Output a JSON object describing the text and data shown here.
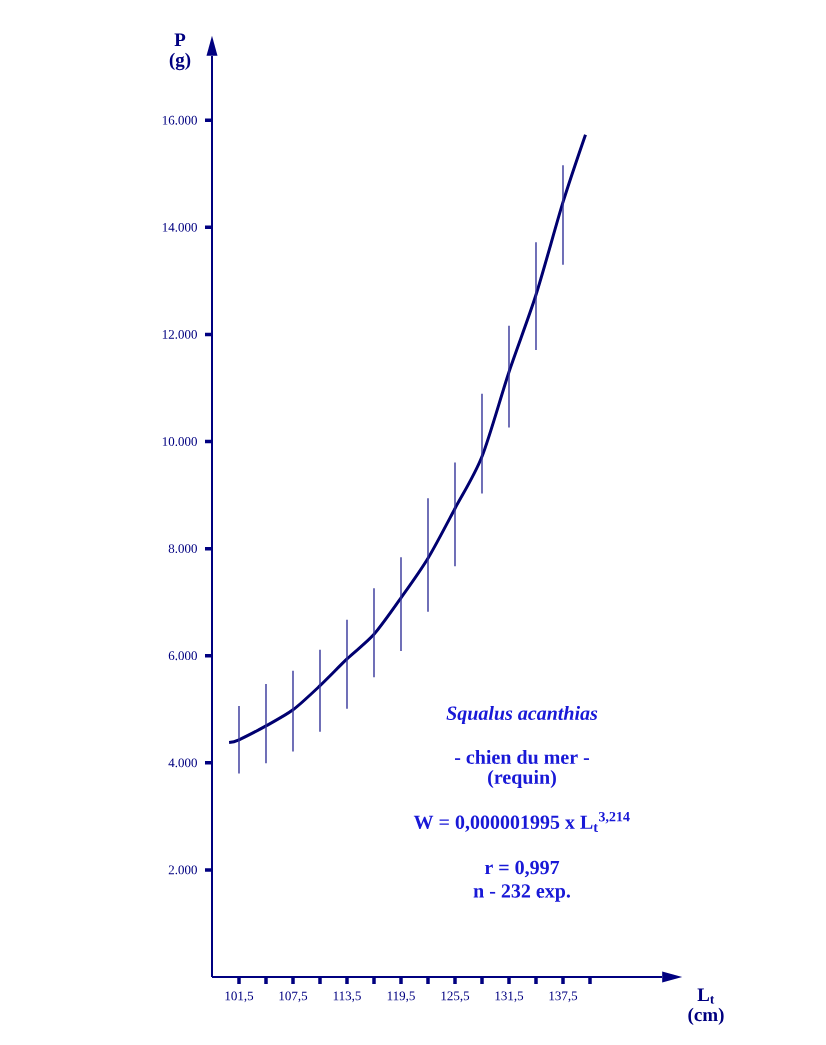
{
  "chart_data": {
    "type": "line",
    "xlabel": "L$_{t}$ (cm)",
    "ylabel": "P (g)",
    "xlim": [
      98.5,
      148.5
    ],
    "ylim": [
      0,
      17200
    ],
    "xticks": [
      {
        "value": 101.5,
        "label": "101,5"
      },
      {
        "value": 104.5,
        "label": null
      },
      {
        "value": 107.5,
        "label": "107,5"
      },
      {
        "value": 110.5,
        "label": null
      },
      {
        "value": 113.5,
        "label": "113,5"
      },
      {
        "value": 116.5,
        "label": null
      },
      {
        "value": 119.5,
        "label": "119,5"
      },
      {
        "value": 122.5,
        "label": null
      },
      {
        "value": 125.5,
        "label": "125,5"
      },
      {
        "value": 128.5,
        "label": null
      },
      {
        "value": 131.5,
        "label": "131,5"
      },
      {
        "value": 134.5,
        "label": null
      },
      {
        "value": 137.5,
        "label": "137,5"
      },
      {
        "value": 140.5,
        "label": null
      }
    ],
    "yticks": [
      {
        "value": 2000,
        "label": "2.000"
      },
      {
        "value": 4000,
        "label": "4.000"
      },
      {
        "value": 6000,
        "label": "6.000"
      },
      {
        "value": 8000,
        "label": "8.000"
      },
      {
        "value": 10000,
        "label": "10.000"
      },
      {
        "value": 12000,
        "label": "12.000"
      },
      {
        "value": 14000,
        "label": "14.000"
      },
      {
        "value": 16000,
        "label": "16.000"
      }
    ],
    "series": [
      {
        "color": "#000070",
        "x": [
          100.4,
          101.5,
          104.5,
          107.5,
          110.5,
          113.5,
          116.5,
          119.5,
          122.5,
          125.5,
          128.5,
          131.5,
          134.5,
          137.5,
          140.0
        ],
        "values": [
          4380,
          4430,
          4690,
          4990,
          5440,
          5940,
          6400,
          7080,
          7820,
          8750,
          9720,
          11300,
          12740,
          14470,
          15730
        ],
        "errors": [
          null,
          [
            3800,
            5060
          ],
          [
            3990,
            5470
          ],
          [
            4210,
            5720
          ],
          [
            4580,
            6110
          ],
          [
            5010,
            6670
          ],
          [
            5600,
            7260
          ],
          [
            6090,
            7840
          ],
          [
            6820,
            8940
          ],
          [
            7670,
            9610
          ],
          [
            9030,
            10890
          ],
          [
            10260,
            12160
          ],
          [
            11710,
            13720
          ],
          [
            13300,
            15160
          ],
          null
        ]
      }
    ],
    "annotations": [
      "Squalus   acanthias",
      "- chien du mer -",
      "(requin)",
      "W =  0,000001995  x  L$_{t}$$^{3,214}$",
      "r = 0,997",
      "n - 232 exp."
    ]
  }
}
